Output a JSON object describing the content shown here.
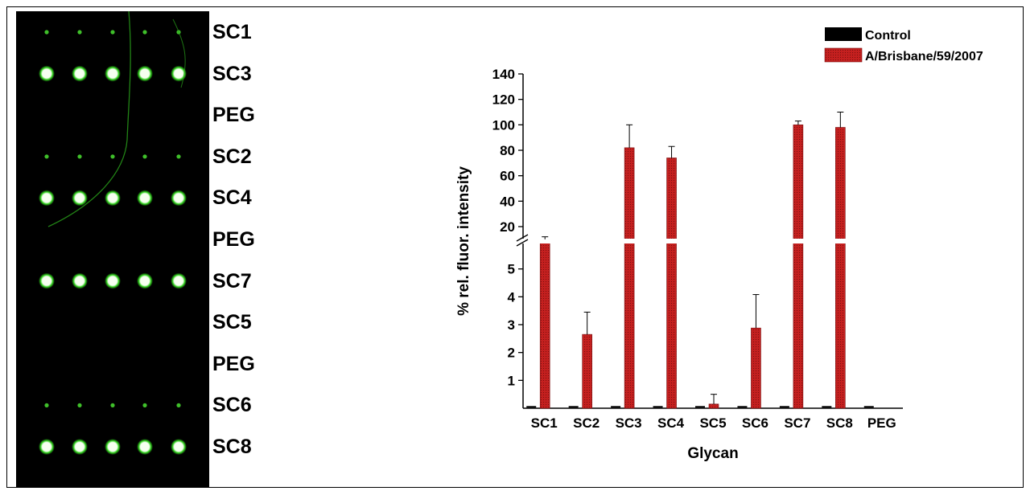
{
  "lane_labels": [
    "SC1",
    "SC3",
    "PEG",
    "SC2",
    "SC4",
    "PEG",
    "SC7",
    "SC5",
    "PEG",
    "SC6",
    "SC8"
  ],
  "spot_intensity": [
    "weak",
    "strong",
    "none",
    "weak",
    "strong",
    "none",
    "strong",
    "none",
    "none",
    "weak",
    "strong"
  ],
  "colors": {
    "control": "#000000",
    "virus": "#c4201f",
    "spot_strong": "#f6fff0",
    "spot_glow": "#32d21e",
    "spot_weak": "#3fbf2a",
    "blot_bg": "#000000"
  },
  "chart_data": {
    "type": "bar",
    "xlabel": "Glycan",
    "ylabel": "% rel. fluor. intensity",
    "categories": [
      "SC1",
      "SC2",
      "SC3",
      "SC4",
      "SC5",
      "SC6",
      "SC7",
      "SC8",
      "PEG"
    ],
    "series": [
      {
        "name": "Control",
        "values": [
          0.02,
          0.02,
          0.02,
          0.02,
          0.02,
          0.02,
          0.02,
          0.02,
          0.02
        ]
      },
      {
        "name": "A/Brisbane/59/2007",
        "values": [
          10,
          2.65,
          82,
          74,
          0.15,
          2.88,
          100,
          98,
          0
        ],
        "errors": [
          2,
          0.8,
          18,
          9,
          0.35,
          1.2,
          3,
          12,
          0
        ]
      }
    ],
    "broken_axis": {
      "lower_range": [
        0,
        6
      ],
      "upper_range": [
        6,
        140
      ],
      "lower_ticks": [
        "1",
        "2",
        "3",
        "4",
        "5"
      ],
      "upper_ticks": [
        "20",
        "40",
        "60",
        "80",
        "100",
        "120",
        "140"
      ]
    },
    "legend_position": "top-right"
  }
}
